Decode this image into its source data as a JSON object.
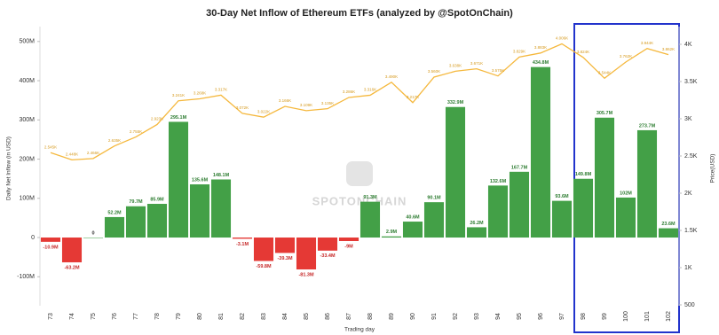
{
  "chart_data": {
    "type": "bar",
    "title": "30-Day Net Inflow of Ethereum ETFs (analyzed by @SpotOnChain)",
    "y_label": "Daily Net Inflow (in USD)",
    "y2_label": "Price(USD)",
    "x_label": "Trading day",
    "watermark": "SPOTONCHAIN",
    "categories": [
      "73",
      "74",
      "75",
      "76",
      "77",
      "78",
      "79",
      "80",
      "81",
      "82",
      "83",
      "84",
      "85",
      "86",
      "87",
      "88",
      "89",
      "90",
      "91",
      "92",
      "93",
      "94",
      "95",
      "96",
      "97",
      "98",
      "99",
      "100",
      "101",
      "102"
    ],
    "series": [
      {
        "type": "bar",
        "color": "#43a047",
        "negative_color": "#e53935",
        "values": [
          -10.9,
          -63.2,
          0,
          52.2,
          79.7,
          85.9,
          295.1,
          135.6,
          148.1,
          -3.1,
          -59.8,
          -39.3,
          -81.3,
          -33.4,
          -9,
          91.3,
          2.9,
          40.6,
          90.1,
          332.9,
          26.2,
          132.6,
          167.7,
          434.8,
          93.6,
          149.8,
          305.7,
          102,
          273.7,
          23.6
        ],
        "value_labels": [
          "-10.9M",
          "-63.2M",
          "0",
          "52.2M",
          "79.7M",
          "85.9M",
          "295.1M",
          "135.6M",
          "148.1M",
          "-3.1M",
          "-59.8M",
          "-39.3M",
          "-81.3M",
          "-33.4M",
          "-9M",
          "91.3M",
          "2.9M",
          "40.6M",
          "90.1M",
          "332.9M",
          "26.2M",
          "132.6M",
          "167.7M",
          "434.8M",
          "93.6M",
          "149.8M",
          "305.7M",
          "102M",
          "273.7M",
          "23.6M"
        ]
      },
      {
        "type": "line",
        "axis": "y2",
        "color": "#f5b83d",
        "values": [
          2545,
          2448,
          2466,
          2635,
          2755,
          2923,
          3241,
          3268,
          3317,
          3072,
          3022,
          3166,
          3109,
          3135,
          3286,
          3316,
          3490,
          3217,
          3560,
          3638,
          3671,
          3575,
          3829,
          3883,
          4006,
          3824,
          3544,
          3762,
          3944,
          3862
        ],
        "value_labels": [
          "2.545K",
          "2.448K",
          "2.466K",
          "2.635K",
          "2.755K",
          "2.923K",
          "3.241K",
          "3.268K",
          "3.317K",
          "3.072K",
          "3.022K",
          "3.166K",
          "3.109K",
          "3.135K",
          "3.286K",
          "3.316K",
          "3.490K",
          "3.217K",
          "3.560K",
          "3.638K",
          "3.671K",
          "3.575K",
          "3.829K",
          "3.883K",
          "4.006K",
          "3.824K",
          "3.544K",
          "3.762K",
          "3.944K",
          "3.862K"
        ]
      }
    ],
    "ylim": [
      -174,
      538
    ],
    "yticks": [
      {
        "value": -100,
        "label": "-100M"
      },
      0,
      {
        "value": 100,
        "label": "100M"
      },
      {
        "value": 200,
        "label": "200M"
      },
      {
        "value": 300,
        "label": "300M"
      },
      {
        "value": 400,
        "label": "400M"
      },
      {
        "value": 500,
        "label": "500M"
      }
    ],
    "y2lim": [
      488,
      4238
    ],
    "y2ticks": [
      500,
      {
        "value": 1000,
        "label": "1K"
      },
      {
        "value": 1500,
        "label": "1.5K"
      },
      {
        "value": 2000,
        "label": "2K"
      },
      {
        "value": 2500,
        "label": "2.5K"
      },
      {
        "value": 3000,
        "label": "3K"
      },
      {
        "value": 3500,
        "label": "3.5K"
      },
      {
        "value": 4000,
        "label": "4K"
      }
    ]
  }
}
